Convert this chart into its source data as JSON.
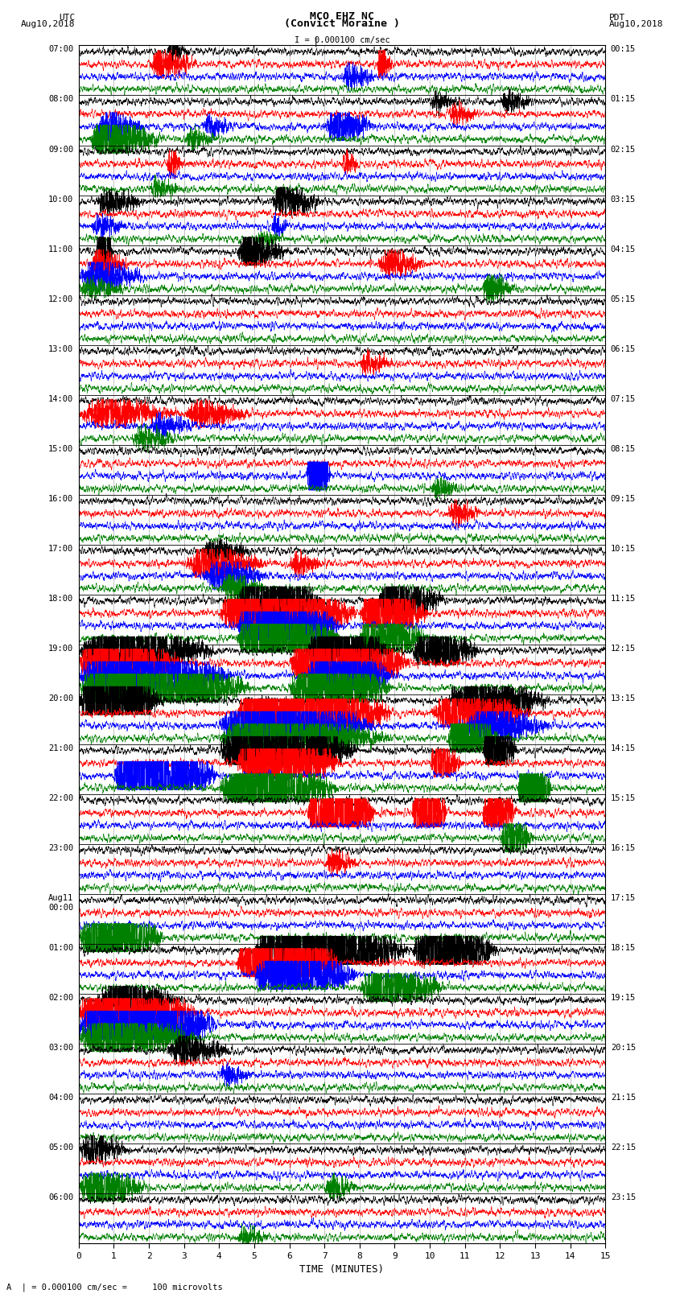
{
  "title_line1": "MCO EHZ NC",
  "title_line2": "(Convict Moraine )",
  "scale_label": "I = 0.000100 cm/sec",
  "left_label_top": "UTC",
  "left_label_date": "Aug10,2018",
  "right_label_top": "PDT",
  "right_label_date": "Aug10,2018",
  "bottom_label": "TIME (MINUTES)",
  "bottom_note": "A  | = 0.000100 cm/sec =     100 microvolts",
  "utc_labels": [
    "07:00",
    "08:00",
    "09:00",
    "10:00",
    "11:00",
    "12:00",
    "13:00",
    "14:00",
    "15:00",
    "16:00",
    "17:00",
    "18:00",
    "19:00",
    "20:00",
    "21:00",
    "22:00",
    "23:00",
    "Aug11\n00:00",
    "01:00",
    "02:00",
    "03:00",
    "04:00",
    "05:00",
    "06:00"
  ],
  "pdt_labels": [
    "00:15",
    "01:15",
    "02:15",
    "03:15",
    "04:15",
    "05:15",
    "06:15",
    "07:15",
    "08:15",
    "09:15",
    "10:15",
    "11:15",
    "12:15",
    "13:15",
    "14:15",
    "15:15",
    "16:15",
    "17:15",
    "18:15",
    "19:15",
    "20:15",
    "21:15",
    "22:15",
    "23:15"
  ],
  "colors": [
    "black",
    "red",
    "blue",
    "green"
  ],
  "background_color": "white",
  "n_rows": 24,
  "traces_per_row": 4,
  "minutes_per_row": 15,
  "seed": 42,
  "noise_base": 0.04,
  "grid_color": "#aaaaaa",
  "border_color": "black"
}
